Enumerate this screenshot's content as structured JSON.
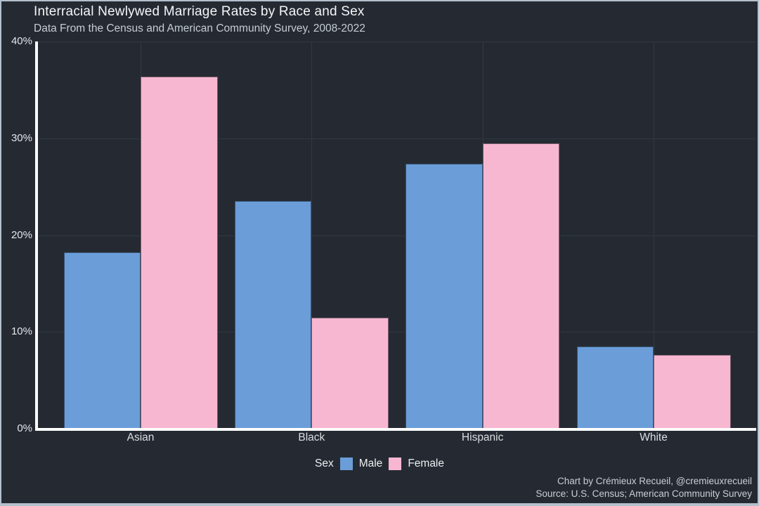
{
  "title": "Interracial Newlywed Marriage Rates by Race and Sex",
  "subtitle": "Data From the Census and American Community Survey, 2008-2022",
  "caption": {
    "line1": "Chart by Crémieux Recueil, @cremieuxrecueil",
    "line2": "Source: U.S. Census; American Community Survey"
  },
  "legend": {
    "title": "Sex",
    "entries": [
      {
        "label": "Male",
        "color": "#6b9ed9"
      },
      {
        "label": "Female",
        "color": "#f8b7d1"
      }
    ]
  },
  "colors": {
    "background": "#252a32",
    "frame_border": "#b4bfcd",
    "axis": "#ffffff",
    "gridline": "#313842",
    "male_bar": "#6b9ed9",
    "female_bar": "#f8b7d1"
  },
  "chart_data": {
    "type": "bar",
    "categories": [
      "Asian",
      "Black",
      "Hispanic",
      "White"
    ],
    "series": [
      {
        "name": "Male",
        "color": "#6b9ed9",
        "values": [
          18.2,
          23.5,
          27.4,
          8.5
        ]
      },
      {
        "name": "Female",
        "color": "#f8b7d1",
        "values": [
          36.4,
          11.5,
          29.5,
          7.6
        ]
      }
    ],
    "title": "Interracial Newlywed Marriage Rates by Race and Sex",
    "subtitle": "Data From the Census and American Community Survey, 2008-2022",
    "xlabel": "",
    "ylabel": "",
    "ylim": [
      0,
      40
    ],
    "yticks": [
      0,
      10,
      20,
      30,
      40
    ],
    "ytick_labels": [
      "0%",
      "10%",
      "20%",
      "30%",
      "40%"
    ],
    "grid": true,
    "legend_position": "bottom"
  }
}
